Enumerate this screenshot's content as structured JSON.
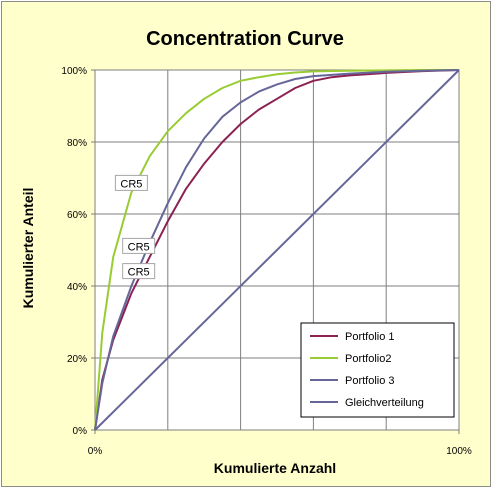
{
  "chart_data": {
    "type": "line",
    "title": "Concentration Curve",
    "xlabel": "Kumulierte Anzahl",
    "ylabel": "Kumulierter Anteil",
    "xlim": [
      0,
      100
    ],
    "ylim": [
      0,
      100
    ],
    "x_ticks": [
      "0%",
      "100%"
    ],
    "y_ticks": [
      "0%",
      "20%",
      "40%",
      "60%",
      "80%",
      "100%"
    ],
    "grid": true,
    "legend_position": "bottom-right",
    "plot_background": "#ffffff",
    "background": "#ffffcc",
    "series": [
      {
        "name": "Portfolio 1",
        "color": "#8b2252",
        "x": [
          0,
          2,
          5,
          10,
          15,
          20,
          25,
          30,
          35,
          40,
          45,
          50,
          55,
          60,
          65,
          70,
          80,
          90,
          100
        ],
        "y": [
          0,
          14,
          25,
          38,
          48,
          58,
          67,
          74,
          80,
          85,
          89,
          92,
          95,
          97,
          98,
          98.5,
          99.2,
          99.7,
          100
        ]
      },
      {
        "name": "Portfolio2",
        "color": "#99cc33",
        "x": [
          0,
          2,
          5,
          10,
          15,
          20,
          25,
          30,
          35,
          40,
          45,
          50,
          55,
          60,
          70,
          80,
          90,
          100
        ],
        "y": [
          0,
          27,
          48,
          66,
          76,
          83,
          88,
          92,
          95,
          97,
          98,
          98.8,
          99.3,
          99.6,
          99.8,
          99.9,
          100,
          100
        ]
      },
      {
        "name": "Portfolio 3",
        "color": "#666699",
        "x": [
          0,
          2,
          5,
          10,
          15,
          20,
          25,
          30,
          35,
          40,
          45,
          50,
          55,
          60,
          70,
          80,
          90,
          100
        ],
        "y": [
          0,
          13,
          26,
          40,
          52,
          63,
          73,
          81,
          87,
          91,
          94,
          96,
          97.5,
          98.3,
          99,
          99.5,
          99.8,
          100
        ]
      },
      {
        "name": "Gleichverteilung",
        "color": "#666699",
        "x": [
          0,
          100
        ],
        "y": [
          0,
          100
        ]
      }
    ],
    "annotations": [
      {
        "text": "CR5",
        "x": 10,
        "y": 68.5
      },
      {
        "text": "CR5",
        "x": 12,
        "y": 51
      },
      {
        "text": "CR5",
        "x": 12,
        "y": 44
      }
    ]
  }
}
